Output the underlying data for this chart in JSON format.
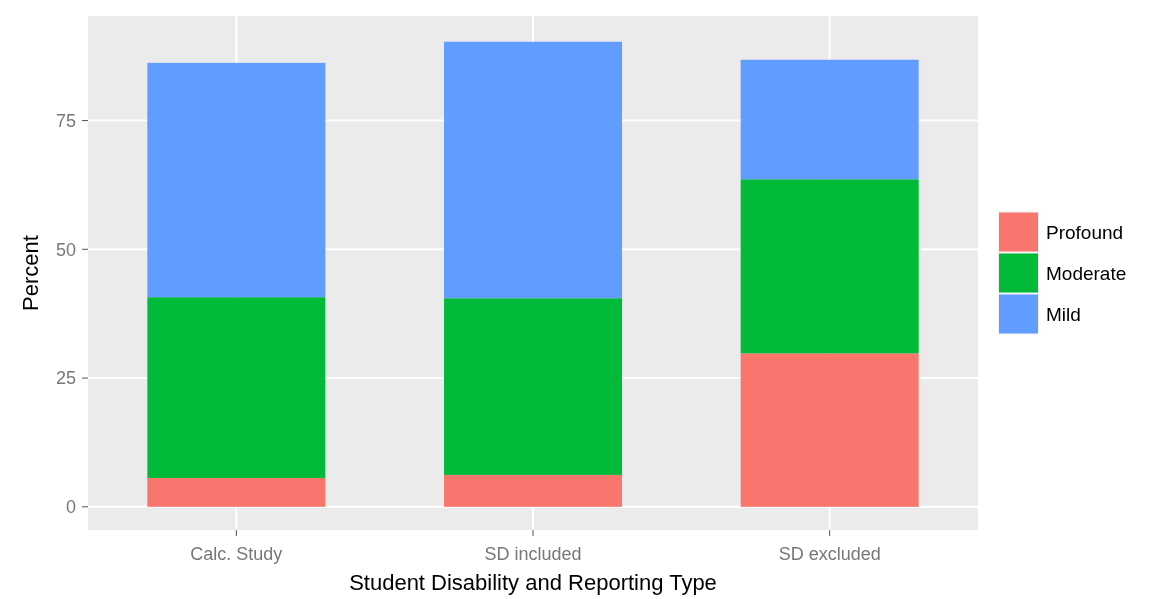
{
  "chart_data": {
    "type": "bar",
    "stacked": true,
    "xlabel": "Student Disability and Reporting Type",
    "ylabel": "Percent",
    "categories": [
      "Calc. Study",
      "SD included",
      "SD excluded"
    ],
    "series": [
      {
        "name": "Profound",
        "color": "#f8766d",
        "values": [
          5.6,
          6.2,
          29.8
        ]
      },
      {
        "name": "Moderate",
        "color": "#00ba38",
        "values": [
          35.1,
          34.3,
          33.8
        ]
      },
      {
        "name": "Mild",
        "color": "#619cff",
        "values": [
          45.5,
          49.8,
          23.2
        ]
      }
    ],
    "ylim": [
      -4.5,
      95.3
    ],
    "yticks": [
      0,
      25,
      50,
      75
    ],
    "grid": true,
    "legend": "right"
  }
}
